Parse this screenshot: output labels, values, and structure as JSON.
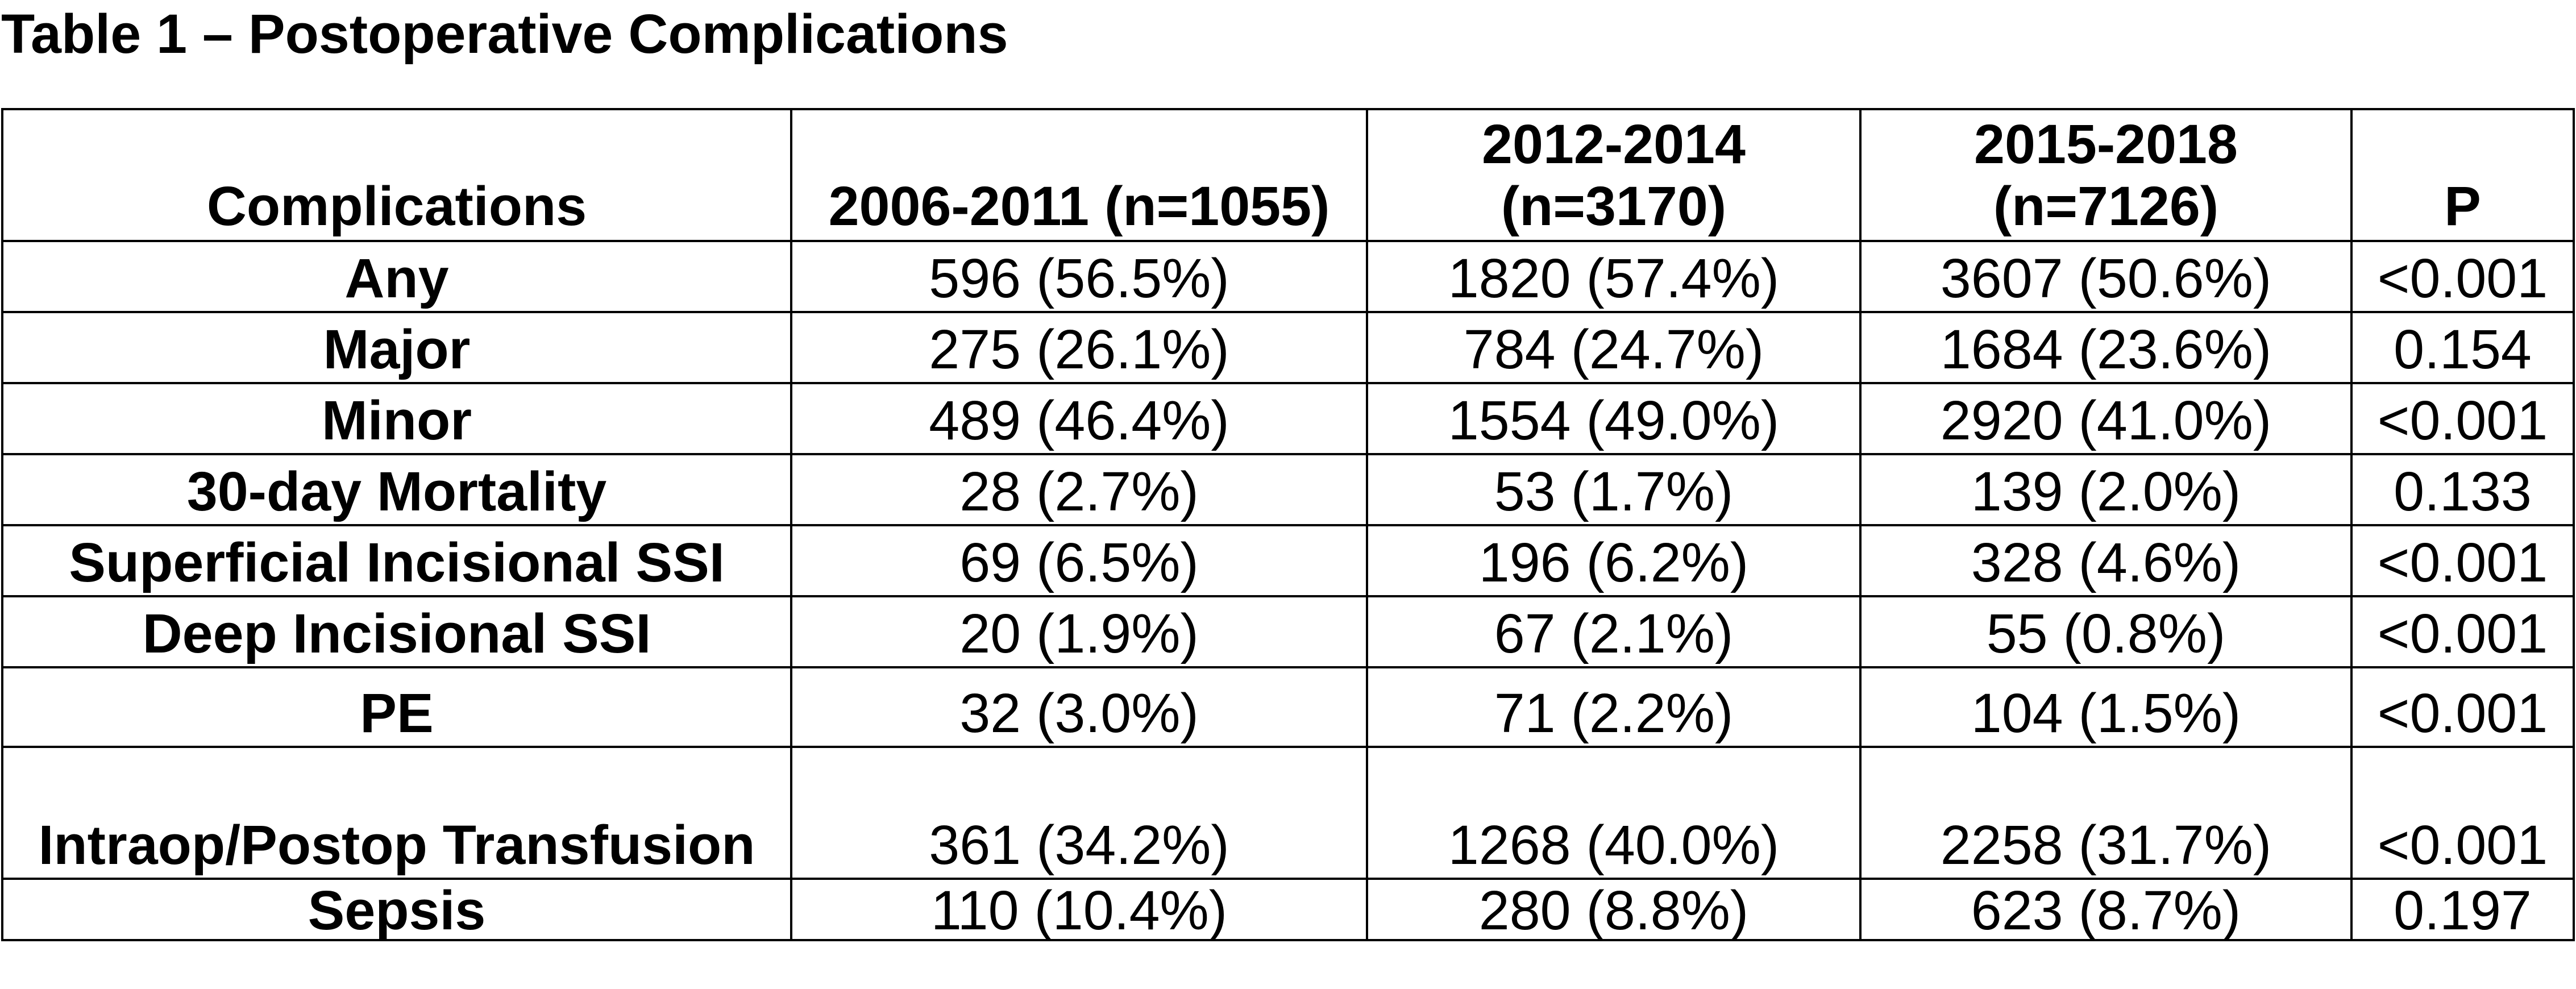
{
  "title": "Table 1 – Postoperative Complications",
  "table": {
    "headers": {
      "col0": "Complications",
      "col1": "2006-2011 (n=1055)",
      "col2": "2012-2014 (n=3170)",
      "col3": "2015-2018 (n=7126)",
      "col4": "P"
    },
    "rows": [
      {
        "label": "Any",
        "v1": "596 (56.5%)",
        "v2": "1820 (57.4%)",
        "v3": "3607 (50.6%)",
        "p": "<0.001"
      },
      {
        "label": "Major",
        "v1": "275 (26.1%)",
        "v2": "784 (24.7%)",
        "v3": "1684 (23.6%)",
        "p": "0.154"
      },
      {
        "label": "Minor",
        "v1": "489 (46.4%)",
        "v2": "1554 (49.0%)",
        "v3": "2920 (41.0%)",
        "p": "<0.001"
      },
      {
        "label": "30-day Mortality",
        "v1": "28 (2.7%)",
        "v2": "53 (1.7%)",
        "v3": "139 (2.0%)",
        "p": "0.133"
      },
      {
        "label": "Superficial Incisional SSI",
        "v1": "69 (6.5%)",
        "v2": "196 (6.2%)",
        "v3": "328 (4.6%)",
        "p": "<0.001"
      },
      {
        "label": "Deep Incisional SSI",
        "v1": "20 (1.9%)",
        "v2": "67 (2.1%)",
        "v3": "55 (0.8%)",
        "p": "<0.001"
      },
      {
        "label": "PE",
        "v1": "32 (3.0%)",
        "v2": "71 (2.2%)",
        "v3": "104 (1.5%)",
        "p": "<0.001"
      },
      {
        "label": "Intraop/Postop Transfusion",
        "v1": "361 (34.2%)",
        "v2": "1268 (40.0%)",
        "v3": "2258 (31.7%)",
        "p": "<0.001"
      },
      {
        "label": "Sepsis",
        "v1": "110 (10.4%)",
        "v2": "280 (8.8%)",
        "v3": "623 (8.7%)",
        "p": "0.197"
      }
    ]
  }
}
